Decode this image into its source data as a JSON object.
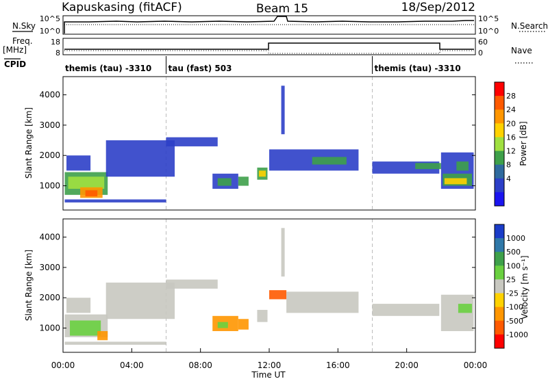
{
  "header": {
    "station": "Kapuskasing (fitACF)",
    "beam": "Beam 15",
    "date": "18/Sep/2012"
  },
  "top_panels": {
    "nsky_label": "N.Sky",
    "nsearch_label": "N.Search",
    "noise_ticks": [
      "10^5",
      "10^0"
    ],
    "freq_label": "Freq.",
    "freq_unit": "[MHz]",
    "freq_ticks": [
      "18",
      "8"
    ],
    "nave_label": "Nave",
    "nave_ticks": [
      "60",
      "0"
    ],
    "cpid_label": "CPID",
    "cpid_segments": [
      {
        "text": "themis (tau) -3310",
        "start": 0,
        "end": 6
      },
      {
        "text": "tau (fast) 503",
        "start": 6,
        "end": 18
      },
      {
        "text": "themis (tau) -3310",
        "start": 18,
        "end": 24
      }
    ]
  },
  "chart_data": [
    {
      "type": "heatmap",
      "name": "power",
      "ylabel": "Slant Range [km]",
      "xlabel": "Time UT",
      "x_ticks": [
        "00:00",
        "04:00",
        "08:00",
        "12:00",
        "16:00",
        "20:00",
        "00:00"
      ],
      "y_ticks": [
        1000,
        2000,
        3000,
        4000
      ],
      "xlim": [
        0,
        24
      ],
      "ylim": [
        200,
        4600
      ],
      "colorbar": {
        "label": "Power [dB]",
        "ticks": [
          "28",
          "24",
          "20",
          "16",
          "12",
          "8",
          "4"
        ],
        "colors": [
          "#ff0000",
          "#ff5a00",
          "#ff9600",
          "#ffd200",
          "#a0e040",
          "#3ea04a",
          "#2f6a9e",
          "#2c3fc8",
          "#1a14f0"
        ]
      },
      "regions": [
        {
          "t0": 0.1,
          "t1": 2.6,
          "r0": 700,
          "r1": 1450,
          "color": "#3ea04a"
        },
        {
          "t0": 0.3,
          "t1": 2.4,
          "r0": 900,
          "r1": 1300,
          "color": "#a0e040"
        },
        {
          "t0": 1.0,
          "t1": 2.3,
          "r0": 600,
          "r1": 950,
          "color": "#ff9600"
        },
        {
          "t0": 1.3,
          "t1": 2.0,
          "r0": 650,
          "r1": 850,
          "color": "#ff5a00"
        },
        {
          "t0": 0.2,
          "t1": 1.6,
          "r0": 1500,
          "r1": 2000,
          "color": "#2c3fc8"
        },
        {
          "t0": 2.5,
          "t1": 6.5,
          "r0": 1300,
          "r1": 2500,
          "color": "#2c3fc8"
        },
        {
          "t0": 6.0,
          "t1": 9.0,
          "r0": 2300,
          "r1": 2600,
          "color": "#2c3fc8"
        },
        {
          "t0": 8.7,
          "t1": 10.2,
          "r0": 900,
          "r1": 1400,
          "color": "#2c3fc8"
        },
        {
          "t0": 9.0,
          "t1": 9.8,
          "r0": 1000,
          "r1": 1250,
          "color": "#3ea04a"
        },
        {
          "t0": 10.2,
          "t1": 10.8,
          "r0": 1000,
          "r1": 1300,
          "color": "#3ea04a"
        },
        {
          "t0": 11.3,
          "t1": 11.9,
          "r0": 1200,
          "r1": 1600,
          "color": "#3ea04a"
        },
        {
          "t0": 11.4,
          "t1": 11.8,
          "r0": 1300,
          "r1": 1500,
          "color": "#ffd200"
        },
        {
          "t0": 12.0,
          "t1": 17.2,
          "r0": 1500,
          "r1": 2200,
          "color": "#2c3fc8"
        },
        {
          "t0": 14.5,
          "t1": 16.5,
          "r0": 1700,
          "r1": 1950,
          "color": "#3ea04a"
        },
        {
          "t0": 18.0,
          "t1": 21.9,
          "r0": 1400,
          "r1": 1800,
          "color": "#2c3fc8"
        },
        {
          "t0": 20.5,
          "t1": 22.0,
          "r0": 1550,
          "r1": 1750,
          "color": "#3ea04a"
        },
        {
          "t0": 22.0,
          "t1": 23.9,
          "r0": 900,
          "r1": 2100,
          "color": "#2c3fc8"
        },
        {
          "t0": 22.1,
          "t1": 23.8,
          "r0": 1000,
          "r1": 1400,
          "color": "#3ea04a"
        },
        {
          "t0": 22.2,
          "t1": 23.5,
          "r0": 1050,
          "r1": 1250,
          "color": "#ffd200"
        },
        {
          "t0": 22.9,
          "t1": 23.6,
          "r0": 1500,
          "r1": 1800,
          "color": "#3ea04a"
        },
        {
          "t0": 0.1,
          "t1": 6.0,
          "r0": 450,
          "r1": 550,
          "color": "#2c3fc8"
        },
        {
          "t0": 12.7,
          "t1": 12.9,
          "r0": 2700,
          "r1": 4300,
          "color": "#2c3fc8"
        }
      ]
    },
    {
      "type": "heatmap",
      "name": "velocity",
      "ylabel": "Slant Range [km]",
      "xlabel": "Time UT",
      "x_ticks": [
        "00:00",
        "04:00",
        "08:00",
        "12:00",
        "16:00",
        "20:00",
        "00:00"
      ],
      "y_ticks": [
        1000,
        2000,
        3000,
        4000
      ],
      "xlim": [
        0,
        24
      ],
      "ylim": [
        200,
        4600
      ],
      "colorbar": {
        "label": "Velocity [m s⁻¹]",
        "ticks": [
          "1000",
          "500",
          "100",
          "25",
          "-25",
          "-100",
          "-500",
          "-1000"
        ],
        "colors": [
          "#1a3cc8",
          "#2f78a8",
          "#3ea04a",
          "#6ad040",
          "#c8c8c0",
          "#ffd200",
          "#ff9600",
          "#ff5a00",
          "#ff0000"
        ]
      },
      "regions": [
        {
          "t0": 0.1,
          "t1": 2.6,
          "r0": 700,
          "r1": 1450,
          "color": "#c8c8c0"
        },
        {
          "t0": 0.4,
          "t1": 2.2,
          "r0": 750,
          "r1": 1250,
          "color": "#6ad040"
        },
        {
          "t0": 2.0,
          "t1": 2.6,
          "r0": 600,
          "r1": 900,
          "color": "#ff9600"
        },
        {
          "t0": 0.2,
          "t1": 1.6,
          "r0": 1500,
          "r1": 2000,
          "color": "#c8c8c0"
        },
        {
          "t0": 2.5,
          "t1": 6.5,
          "r0": 1300,
          "r1": 2500,
          "color": "#c8c8c0"
        },
        {
          "t0": 6.0,
          "t1": 9.0,
          "r0": 2300,
          "r1": 2600,
          "color": "#c8c8c0"
        },
        {
          "t0": 8.7,
          "t1": 10.2,
          "r0": 900,
          "r1": 1400,
          "color": "#ff9600"
        },
        {
          "t0": 9.0,
          "t1": 9.6,
          "r0": 1000,
          "r1": 1200,
          "color": "#6ad040"
        },
        {
          "t0": 10.2,
          "t1": 10.8,
          "r0": 950,
          "r1": 1300,
          "color": "#ff9600"
        },
        {
          "t0": 11.3,
          "t1": 11.9,
          "r0": 1200,
          "r1": 1600,
          "color": "#c8c8c0"
        },
        {
          "t0": 12.0,
          "t1": 13.0,
          "r0": 1950,
          "r1": 2250,
          "color": "#ff5a00"
        },
        {
          "t0": 13.0,
          "t1": 17.2,
          "r0": 1500,
          "r1": 2200,
          "color": "#c8c8c0"
        },
        {
          "t0": 18.0,
          "t1": 21.9,
          "r0": 1400,
          "r1": 1800,
          "color": "#c8c8c0"
        },
        {
          "t0": 22.0,
          "t1": 23.9,
          "r0": 900,
          "r1": 2100,
          "color": "#c8c8c0"
        },
        {
          "t0": 23.0,
          "t1": 23.8,
          "r0": 1500,
          "r1": 1800,
          "color": "#6ad040"
        },
        {
          "t0": 0.1,
          "t1": 6.0,
          "r0": 450,
          "r1": 550,
          "color": "#c8c8c0"
        },
        {
          "t0": 12.7,
          "t1": 12.9,
          "r0": 2700,
          "r1": 4300,
          "color": "#c8c8c0"
        }
      ]
    }
  ]
}
